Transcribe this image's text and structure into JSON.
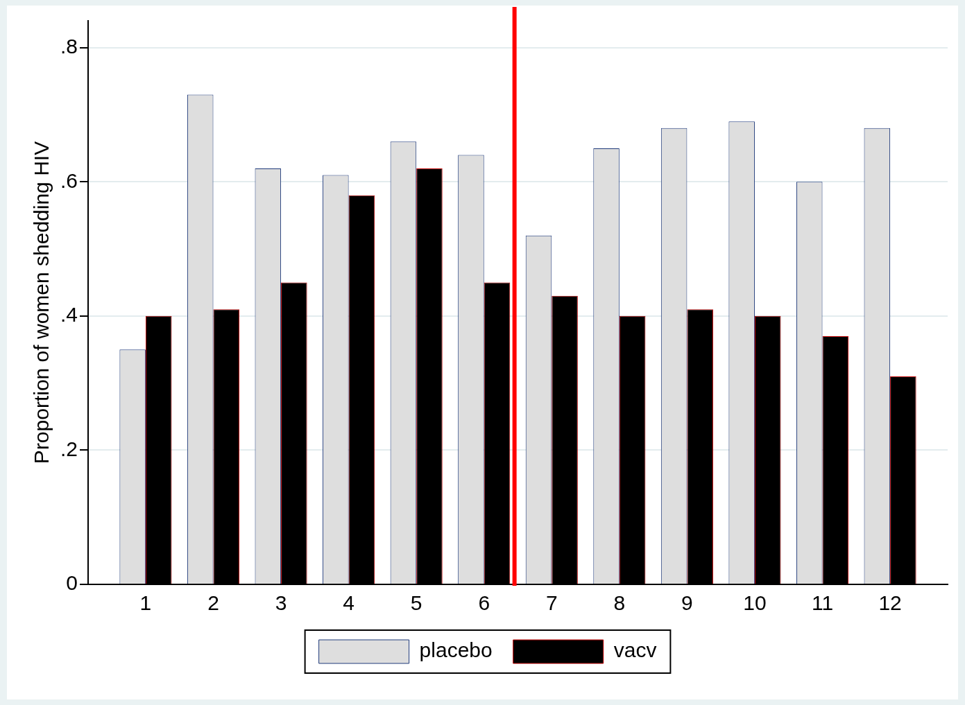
{
  "chart_data": {
    "type": "bar",
    "ylabel": "Proportion of women shedding HIV",
    "x": [
      1,
      2,
      3,
      4,
      5,
      6,
      7,
      8,
      9,
      10,
      11,
      12
    ],
    "xlim": [
      0.15,
      12.85
    ],
    "xticks": [
      1,
      2,
      3,
      4,
      5,
      6,
      7,
      8,
      9,
      10,
      11,
      12
    ],
    "ref_lines": [
      {
        "axis": "x",
        "value": 6.45,
        "color": "#ff0000"
      }
    ],
    "series": [
      {
        "name": "placebo",
        "color": "#dedede",
        "values": [
          0.35,
          0.73,
          0.62,
          0.61,
          0.66,
          0.64,
          0.52,
          0.65,
          0.68,
          0.69,
          0.6,
          0.68
        ]
      },
      {
        "name": "vacv",
        "color": "#000000",
        "values": [
          0.4,
          0.41,
          0.45,
          0.58,
          0.62,
          0.45,
          0.43,
          0.4,
          0.41,
          0.4,
          0.37,
          0.31
        ]
      }
    ],
    "ylim": [
      0,
      0.84
    ],
    "yticks": [
      {
        "value": 0,
        "label": "0"
      },
      {
        "value": 0.2,
        "label": ".2"
      },
      {
        "value": 0.4,
        "label": ".4"
      },
      {
        "value": 0.6,
        "label": ".6"
      },
      {
        "value": 0.8,
        "label": ".8"
      }
    ],
    "grid": "y",
    "legend": "bottom"
  }
}
